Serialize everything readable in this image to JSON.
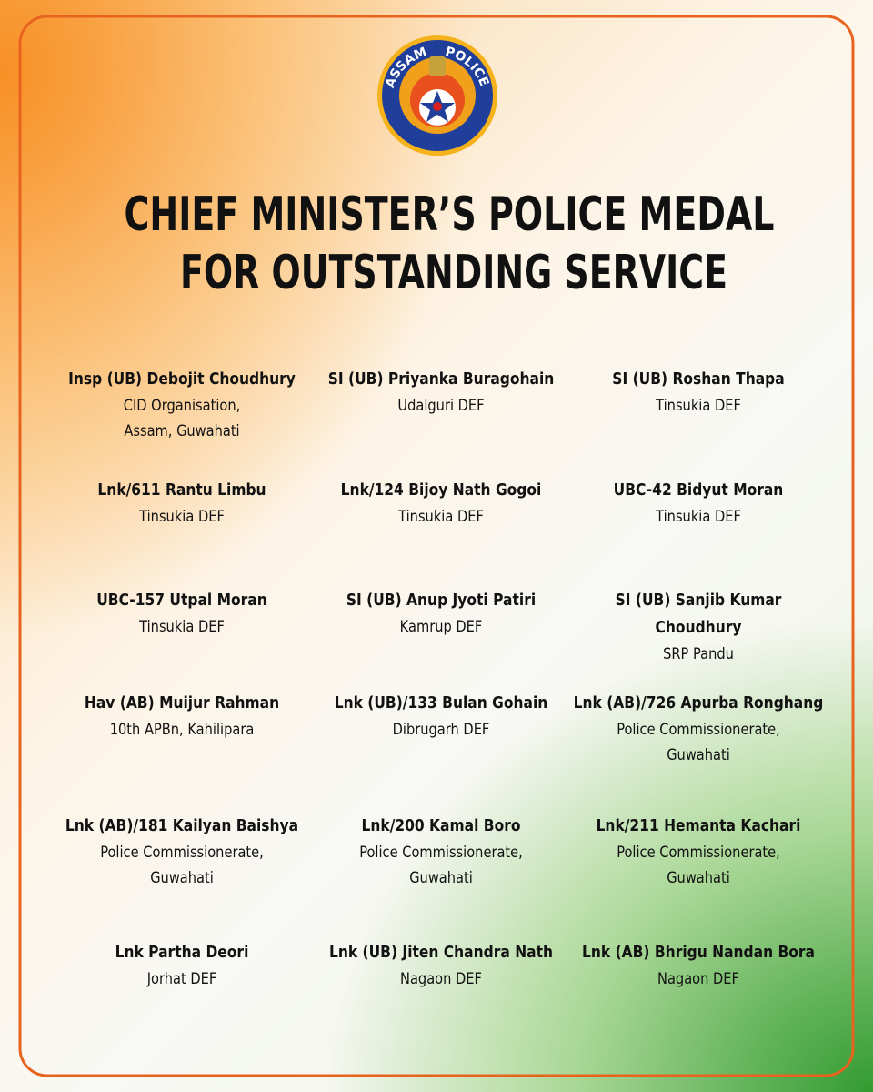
{
  "header": {
    "logo_top": "ASSAM",
    "logo_bottom": "POLICE",
    "title": [
      "CHIEF MINISTER’S POLICE MEDAL",
      "FOR OUTSTANDING SERVICE"
    ]
  },
  "awardees": [
    {
      "name": "Insp (UB) Debojit Choudhury",
      "unit": [
        "CID Organisation,",
        "Assam, Guwahati"
      ]
    },
    {
      "name": "SI (UB) Priyanka Buragohain",
      "unit": [
        "Udalguri DEF"
      ]
    },
    {
      "name": "SI (UB) Roshan Thapa",
      "unit": [
        "Tinsukia DEF"
      ]
    },
    {
      "name": "Lnk/611 Rantu Limbu",
      "unit": [
        "Tinsukia DEF"
      ]
    },
    {
      "name": "Lnk/124 Bijoy Nath Gogoi",
      "unit": [
        "Tinsukia DEF"
      ]
    },
    {
      "name": "UBC-42 Bidyut Moran",
      "unit": [
        "Tinsukia DEF"
      ]
    },
    {
      "name": "UBC-157 Utpal Moran",
      "unit": [
        "Tinsukia DEF"
      ]
    },
    {
      "name": "SI (UB) Anup Jyoti Patiri",
      "unit": [
        "Kamrup DEF"
      ]
    },
    {
      "name": "SI (UB) Sanjib Kumar Choudhury",
      "unit": [
        "SRP Pandu"
      ]
    },
    {
      "name": "Hav (AB) Muijur Rahman",
      "unit": [
        "10th APBn, Kahilipara"
      ]
    },
    {
      "name": "Lnk (UB)/133 Bulan Gohain",
      "unit": [
        "Dibrugarh DEF"
      ]
    },
    {
      "name": "Lnk (AB)/726 Apurba Ronghang",
      "unit": [
        "Police Commissionerate,",
        "Guwahati"
      ]
    },
    {
      "name": "Lnk (AB)/181 Kailyan Baishya",
      "unit": [
        "Police Commissionerate,",
        "Guwahati"
      ]
    },
    {
      "name": "Lnk/200 Kamal Boro",
      "unit": [
        "Police Commissionerate,",
        "Guwahati"
      ]
    },
    {
      "name": "Lnk/211 Hemanta Kachari",
      "unit": [
        "Police Commissionerate,",
        "Guwahati"
      ]
    },
    {
      "name": "Lnk Partha Deori",
      "unit": [
        "Jorhat DEF"
      ]
    },
    {
      "name": "Lnk (UB) Jiten Chandra Nath",
      "unit": [
        "Nagaon DEF"
      ]
    },
    {
      "name": "Lnk (AB) Bhrigu Nandan Bora",
      "unit": [
        "Nagaon DEF"
      ]
    }
  ]
}
